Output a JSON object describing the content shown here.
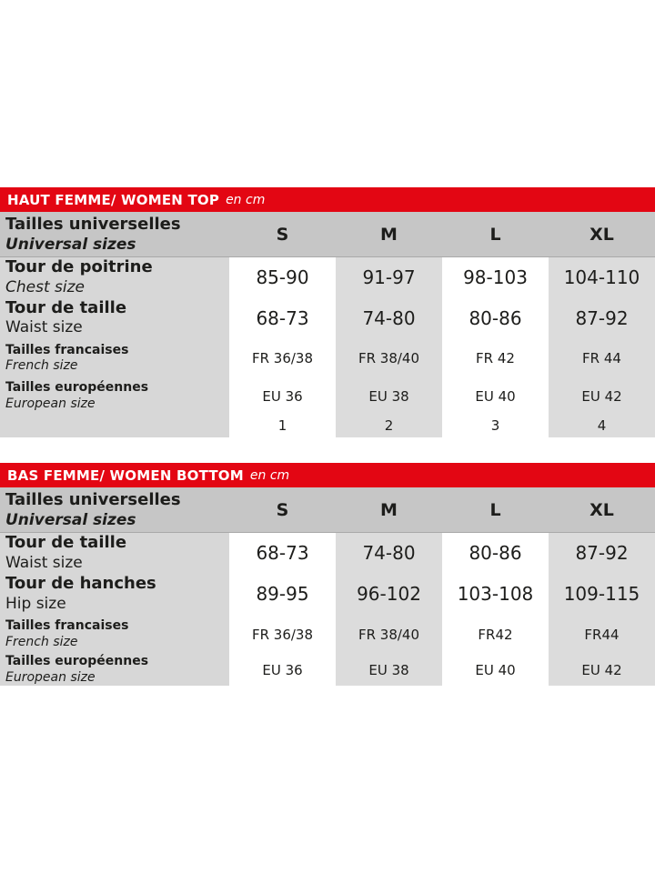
{
  "colors": {
    "accent_red": "#e30613",
    "header_row_gray": "#c6c6c6",
    "label_column_gray": "#d7d7d7",
    "alt_column_gray": "#dcdcdc",
    "bar_text": "#ffffff",
    "text": "#1d1d1b"
  },
  "tables": [
    {
      "title": "HAUT FEMME/ WOMEN TOP",
      "unit": "en cm",
      "header": {
        "label_fr": "Tailles universelles",
        "label_en": "Universal sizes",
        "columns": [
          "S",
          "M",
          "L",
          "XL"
        ]
      },
      "rows": [
        {
          "label_fr": "Tour de poitrine",
          "label_en": "Chest size",
          "en_style": "italic",
          "scale": "large",
          "values": [
            "85-90",
            "91-97",
            "98-103",
            "104-110"
          ]
        },
        {
          "label_fr": "Tour de taille",
          "label_en": "Waist size",
          "en_style": "upright",
          "scale": "large",
          "values": [
            "68-73",
            "74-80",
            "80-86",
            "87-92"
          ]
        },
        {
          "label_fr": "Tailles francaises",
          "label_en": "French size",
          "en_style": "italic",
          "scale": "small",
          "values": [
            "FR 36/38",
            "FR 38/40",
            "FR 42",
            "FR 44"
          ]
        },
        {
          "label_fr": "Tailles européennes",
          "label_en": "European size",
          "en_style": "italic",
          "scale": "small",
          "values": [
            "EU 36",
            "EU 38",
            "EU 40",
            "EU 42"
          ]
        },
        {
          "label_fr": "",
          "label_en": "",
          "en_style": "upright",
          "scale": "tiny",
          "values": [
            "1",
            "2",
            "3",
            "4"
          ]
        }
      ]
    },
    {
      "title": "BAS FEMME/ WOMEN BOTTOM",
      "unit": "en cm",
      "header": {
        "label_fr": "Tailles universelles",
        "label_en": "Universal sizes",
        "columns": [
          "S",
          "M",
          "L",
          "XL"
        ]
      },
      "rows": [
        {
          "label_fr": "Tour de taille",
          "label_en": "Waist size",
          "en_style": "upright",
          "scale": "large",
          "values": [
            "68-73",
            "74-80",
            "80-86",
            "87-92"
          ]
        },
        {
          "label_fr": "Tour de hanches",
          "label_en": "Hip size",
          "en_style": "upright",
          "scale": "large",
          "values": [
            "89-95",
            "96-102",
            "103-108",
            "109-115"
          ]
        },
        {
          "label_fr": "Tailles francaises",
          "label_en": "French size",
          "en_style": "italic",
          "scale": "small",
          "values": [
            "FR 36/38",
            "FR 38/40",
            "FR42",
            "FR44"
          ]
        },
        {
          "label_fr": "Tailles européennes",
          "label_en": "European size",
          "en_style": "italic",
          "scale": "small",
          "values": [
            "EU 36",
            "EU 38",
            "EU 40",
            "EU 42"
          ]
        }
      ]
    }
  ]
}
